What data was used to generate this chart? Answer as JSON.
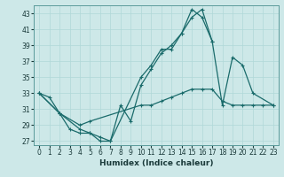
{
  "xlabel": "Humidex (Indice chaleur)",
  "background_color": "#cde8e8",
  "grid_color": "#b0d8d8",
  "line_color": "#1a6b6b",
  "xlim": [
    -0.5,
    23.5
  ],
  "ylim": [
    26.5,
    44.0
  ],
  "xticks": [
    0,
    1,
    2,
    3,
    4,
    5,
    6,
    7,
    8,
    9,
    10,
    11,
    12,
    13,
    14,
    15,
    16,
    17,
    18,
    19,
    20,
    21,
    22,
    23
  ],
  "yticks": [
    27,
    29,
    31,
    33,
    35,
    37,
    39,
    41,
    43
  ],
  "line_upper_x": [
    0,
    1,
    2,
    3,
    4,
    5,
    6,
    7,
    10,
    11,
    12,
    13,
    14,
    15,
    16,
    17
  ],
  "line_upper_y": [
    33,
    32.5,
    30.5,
    28.5,
    28.0,
    28.0,
    27.0,
    27.0,
    35.0,
    36.5,
    38.5,
    38.5,
    40.5,
    43.5,
    42.5,
    39.5
  ],
  "line_mid_x": [
    0,
    2,
    4,
    5,
    6,
    7,
    8,
    9,
    10,
    11,
    12,
    13,
    14,
    15,
    16,
    17,
    18,
    19,
    20,
    21,
    23
  ],
  "line_mid_y": [
    33,
    30.5,
    28.5,
    28.0,
    27.5,
    27.0,
    31.5,
    29.5,
    34.0,
    36.0,
    38.0,
    39.0,
    40.5,
    42.5,
    43.5,
    39.5,
    31.5,
    37.5,
    36.5,
    33.0,
    31.5
  ],
  "line_low_x": [
    0,
    2,
    4,
    5,
    10,
    11,
    12,
    13,
    14,
    15,
    16,
    17,
    18,
    19,
    20,
    21,
    22,
    23
  ],
  "line_low_y": [
    33,
    30.5,
    29.0,
    29.5,
    31.5,
    31.5,
    32.0,
    32.5,
    33.0,
    33.5,
    33.5,
    33.5,
    32.0,
    31.5,
    31.5,
    31.5,
    31.5,
    31.5
  ]
}
